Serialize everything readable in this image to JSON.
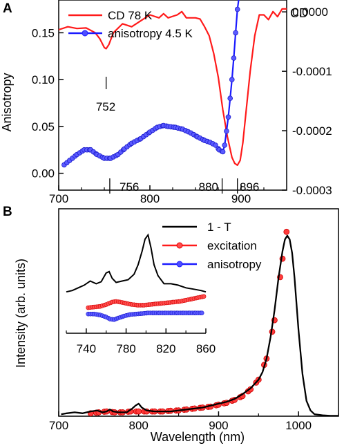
{
  "chart_data": [
    {
      "panel_label": "A",
      "type": "line",
      "xlabel": "",
      "ylabel": "Anisotropy",
      "y2label": "CD",
      "xlim": [
        700,
        950
      ],
      "ylim": [
        -0.018,
        0.185
      ],
      "y2lim": [
        -0.0003,
        2e-05
      ],
      "x_ticks": [
        "700",
        "800",
        "900"
      ],
      "y_ticks": [
        "0.00",
        "0.05",
        "0.10",
        "0.15"
      ],
      "y2_ticks": [
        "0.0000",
        "-0.0001",
        "-0.0002",
        "-0.0003"
      ],
      "legend": {
        "placement": "top-center",
        "entries": [
          {
            "label": "CD  78 K",
            "color": "#ff1a1a",
            "marker": "line"
          },
          {
            "label": "anisotropy 4.5 K",
            "color": "#1a1aff",
            "marker": "line-circle"
          }
        ]
      },
      "annotations": [
        {
          "text": "752",
          "x": 752
        },
        {
          "text": "756",
          "x": 756
        },
        {
          "text": "880",
          "x": 880
        },
        {
          "text": "896",
          "x": 896
        }
      ],
      "series": [
        {
          "name": "CD  78 K",
          "axis": "right",
          "color": "#ff1a1a",
          "x": [
            700,
            710,
            720,
            730,
            740,
            745,
            750,
            752,
            755,
            760,
            770,
            780,
            790,
            800,
            810,
            815,
            820,
            830,
            835,
            840,
            850,
            855,
            860,
            865,
            870,
            875,
            880,
            885,
            890,
            893,
            896,
            899,
            902,
            906,
            910,
            915,
            920,
            925,
            930,
            935,
            940,
            945,
            950
          ],
          "y": [
            -3e-05,
            -2.5e-05,
            -2.8e-05,
            -2.7e-05,
            -3.5e-05,
            -4.5e-05,
            -6e-05,
            -6.2e-05,
            -5.5e-05,
            -3.5e-05,
            -2e-05,
            -2.5e-05,
            -1.5e-05,
            -5e-06,
            -1e-05,
            -3e-06,
            -1e-05,
            -5e-06,
            5e-07,
            -1e-05,
            -1e-05,
            -1.2e-05,
            -2.5e-05,
            -4e-05,
            -7e-05,
            -0.00011,
            -0.000165,
            -0.00021,
            -0.000245,
            -0.000255,
            -0.000258,
            -0.00025,
            -0.00022,
            -0.00016,
            -0.0001,
            -4e-05,
            -5e-06,
            -5e-06,
            -1.3e-05,
            5e-07,
            -8e-06,
            5e-06,
            5e-06
          ]
        },
        {
          "name": "anisotropy 4.5 K",
          "axis": "left",
          "color": "#1a1aff",
          "x": [
            706,
            715,
            720,
            728,
            735,
            742,
            750,
            757,
            765,
            772,
            780,
            790,
            800,
            808,
            815,
            820,
            828,
            836,
            845,
            852,
            860,
            866,
            872,
            876,
            880,
            882,
            884,
            886,
            888,
            890,
            892,
            894,
            896
          ],
          "y": [
            0.009,
            0.016,
            0.02,
            0.025,
            0.025,
            0.02,
            0.016,
            0.016,
            0.02,
            0.026,
            0.032,
            0.037,
            0.044,
            0.049,
            0.051,
            0.05,
            0.049,
            0.047,
            0.043,
            0.039,
            0.035,
            0.033,
            0.03,
            0.025,
            0.023,
            0.03,
            0.045,
            0.06,
            0.08,
            0.1,
            0.123,
            0.15,
            0.175
          ]
        }
      ]
    },
    {
      "panel_label": "B",
      "type": "line",
      "xlabel": "Wavelength (nm)",
      "ylabel": "Intensity (arb. units)",
      "xlim": [
        700,
        1050
      ],
      "ylim": [
        0,
        1.08
      ],
      "x_ticks": [
        "700",
        "800",
        "900",
        "1000"
      ],
      "legend": {
        "placement": "top-right",
        "entries": [
          {
            "label": "1 - T",
            "color": "#000000",
            "marker": "line"
          },
          {
            "label": "excitation",
            "color": "#ff1a1a",
            "marker": "line-circle"
          },
          {
            "label": "anisotropy",
            "color": "#1a1aff",
            "marker": "line-circle"
          }
        ]
      },
      "series": [
        {
          "name": "1 - T",
          "color": "#000000",
          "x": [
            703,
            710,
            720,
            730,
            740,
            748,
            755,
            760,
            764,
            768,
            775,
            785,
            792,
            796,
            800,
            804,
            810,
            820,
            830,
            840,
            850,
            860,
            870,
            880,
            890,
            900,
            910,
            920,
            930,
            940,
            950,
            955,
            960,
            965,
            970,
            975,
            980,
            983,
            986,
            989,
            992,
            995,
            1000,
            1005,
            1010,
            1015,
            1020,
            1030,
            1040,
            1050
          ],
          "y": [
            0.01,
            0.015,
            0.02,
            0.015,
            0.025,
            0.03,
            0.02,
            0.025,
            0.035,
            0.025,
            0.02,
            0.02,
            0.04,
            0.055,
            0.065,
            0.045,
            0.03,
            0.025,
            0.025,
            0.025,
            0.03,
            0.035,
            0.04,
            0.045,
            0.055,
            0.065,
            0.075,
            0.09,
            0.115,
            0.145,
            0.19,
            0.23,
            0.3,
            0.41,
            0.55,
            0.72,
            0.86,
            0.92,
            0.94,
            0.92,
            0.85,
            0.72,
            0.45,
            0.22,
            0.08,
            0.03,
            0.01,
            0.005,
            0.002,
            0.002
          ]
        },
        {
          "name": "excitation",
          "color": "#ff1a1a",
          "x": [
            740,
            750,
            760,
            770,
            780,
            790,
            800,
            810,
            820,
            830,
            840,
            850,
            860,
            870,
            880,
            890,
            900,
            910,
            920,
            930,
            940,
            950,
            960,
            970,
            980,
            985
          ],
          "y": [
            0.015,
            0.02,
            0.025,
            0.02,
            0.02,
            0.025,
            0.025,
            0.025,
            0.025,
            0.025,
            0.028,
            0.03,
            0.035,
            0.04,
            0.045,
            0.05,
            0.06,
            0.07,
            0.085,
            0.105,
            0.14,
            0.19,
            0.3,
            0.5,
            0.82,
            0.96
          ]
        }
      ],
      "inset": {
        "xlim": [
          720,
          860
        ],
        "x_ticks": [
          "740",
          "780",
          "820",
          "860"
        ],
        "series": [
          {
            "name": "1 - T",
            "color": "#000000",
            "x": [
              720,
              726,
              732,
              738,
              744,
              750,
              755,
              760,
              763,
              766,
              770,
              776,
              782,
              788,
              792,
              796,
              799,
              802,
              805,
              808,
              812,
              818,
              825,
              832,
              840,
              848,
              855,
              860
            ],
            "y": [
              0.1,
              0.12,
              0.16,
              0.2,
              0.26,
              0.22,
              0.25,
              0.38,
              0.4,
              0.3,
              0.24,
              0.26,
              0.28,
              0.36,
              0.5,
              0.7,
              0.88,
              0.94,
              0.75,
              0.5,
              0.34,
              0.22,
              0.22,
              0.2,
              0.16,
              0.14,
              0.12,
              0.1
            ]
          },
          {
            "name": "excitation",
            "color": "#ff1a1a",
            "x": [
              742,
              748,
              754,
              760,
              766,
              770,
              774,
              780,
              786,
              792,
              798,
              804,
              810,
              816,
              822,
              828,
              834,
              840,
              846,
              852,
              858
            ],
            "y": [
              0.0,
              0.01,
              0.02,
              0.05,
              0.09,
              0.1,
              0.09,
              0.07,
              0.05,
              0.04,
              0.04,
              0.05,
              0.06,
              0.07,
              0.08,
              0.09,
              0.1,
              0.12,
              0.14,
              0.16,
              0.18
            ]
          },
          {
            "name": "anisotropy",
            "color": "#1a1aff",
            "x": [
              742,
              748,
              754,
              760,
              764,
              768,
              772,
              778,
              784,
              790,
              796,
              802,
              808,
              814,
              820,
              826,
              832,
              838,
              844,
              850,
              856
            ],
            "y": [
              0.0,
              0.0,
              -0.02,
              -0.06,
              -0.1,
              -0.11,
              -0.08,
              -0.04,
              -0.01,
              0.0,
              0.01,
              0.02,
              0.02,
              0.02,
              0.02,
              0.02,
              0.02,
              0.02,
              0.02,
              0.02,
              0.02
            ]
          }
        ]
      }
    }
  ]
}
